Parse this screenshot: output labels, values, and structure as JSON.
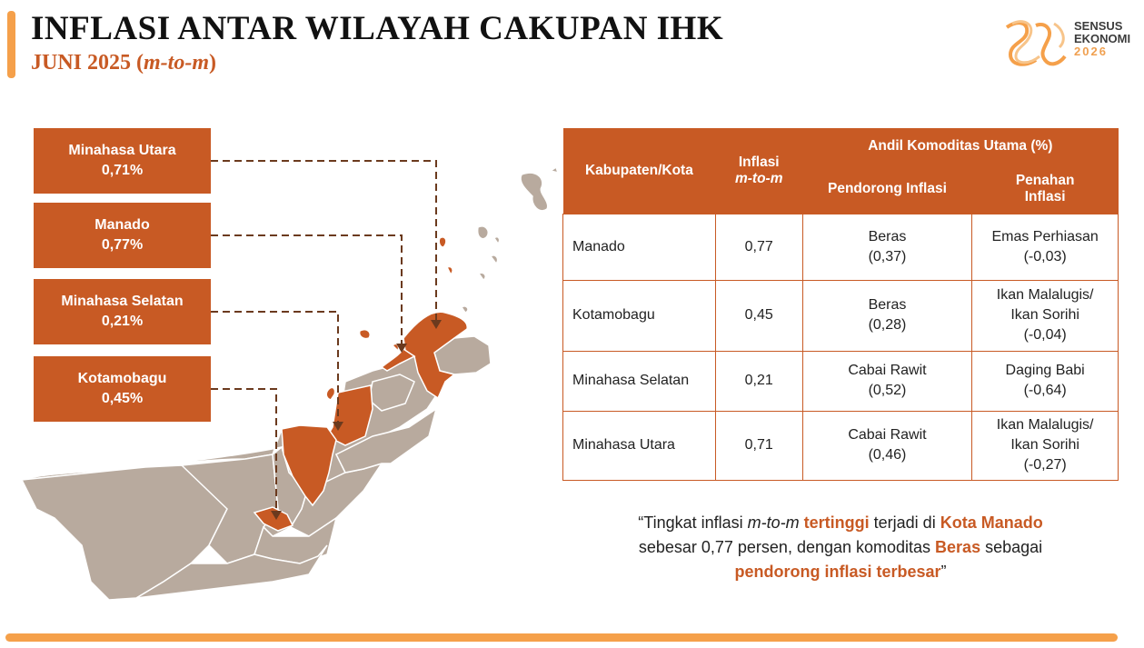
{
  "header": {
    "title": "INFLASI ANTAR WILAYAH CAKUPAN IHK",
    "subtitle_prefix": "JUNI 2025 (",
    "subtitle_italic": "m-to-m",
    "subtitle_suffix": ")"
  },
  "logo": {
    "line1": "SENSUS",
    "line2": "EKONOMI",
    "year": "2026"
  },
  "labels": [
    {
      "name": "Minahasa Utara",
      "value": "0,71%"
    },
    {
      "name": "Manado",
      "value": "0,77%"
    },
    {
      "name": "Minahasa Selatan",
      "value": "0,21%"
    },
    {
      "name": "Kotamobagu",
      "value": "0,45%"
    }
  ],
  "table": {
    "headers": {
      "kabupaten": "Kabupaten/Kota",
      "inflasi_line1": "Inflasi",
      "inflasi_line2": "m-to-m",
      "andil": "Andil Komoditas Utama (%)",
      "pendorong": "Pendorong Inflasi",
      "penahan_line1": "Penahan",
      "penahan_line2": "Inflasi"
    },
    "rows": [
      {
        "kabupaten": "Manado",
        "inflasi": "0,77",
        "pendorong": [
          "Beras",
          "(0,37)"
        ],
        "penahan": [
          "Emas Perhiasan",
          "(-0,03)"
        ]
      },
      {
        "kabupaten": "Kotamobagu",
        "inflasi": "0,45",
        "pendorong": [
          "Beras",
          "(0,28)"
        ],
        "penahan": [
          "Ikan Malalugis/",
          "Ikan Sorihi",
          "(-0,04)"
        ]
      },
      {
        "kabupaten": "Minahasa Selatan",
        "inflasi": "0,21",
        "pendorong": [
          "Cabai Rawit",
          "(0,52)"
        ],
        "penahan": [
          "Daging Babi",
          "(-0,64)"
        ]
      },
      {
        "kabupaten": "Minahasa Utara",
        "inflasi": "0,71",
        "pendorong": [
          "Cabai Rawit",
          "(0,46)"
        ],
        "penahan": [
          "Ikan Malalugis/",
          "Ikan Sorihi",
          "(-0,27)"
        ]
      }
    ]
  },
  "quote": {
    "p1": "“Tingkat inflasi ",
    "p2": "m-to-m",
    "p3": " tertinggi",
    "p4": " terjadi di ",
    "p5": "Kota Manado",
    "p6": "sebesar 0,77 persen, dengan komoditas ",
    "p7": "Beras",
    "p8": " sebagai",
    "p9": "pendorong inflasi terbesar",
    "p10": "”"
  },
  "colors": {
    "accent": "#c85a24",
    "bar": "#f5a04a",
    "land": "#b8aa9e"
  }
}
